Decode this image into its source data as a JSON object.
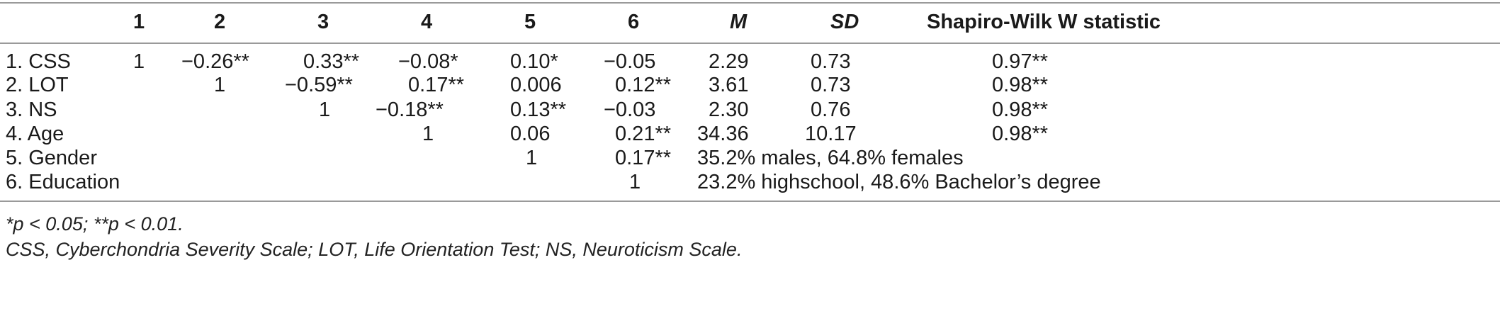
{
  "table": {
    "headers": {
      "c1": "1",
      "c2": "2",
      "c3": "3",
      "c4": "4",
      "c5": "5",
      "c6": "6",
      "m": "M",
      "sd": "SD",
      "sw": "Shapiro-Wilk W statistic"
    },
    "rows": [
      {
        "label": "1. CSS",
        "c1": "1",
        "c2": "−0.26**",
        "c3": "0.33**",
        "c4": "−0.08*",
        "c5": "0.10*",
        "c6": "−0.05",
        "m": "2.29",
        "sd": "0.73",
        "sw": "0.97**"
      },
      {
        "label": "2. LOT",
        "c2": "1",
        "c3": "−0.59**",
        "c4": "0.17**",
        "c5": "0.006",
        "c6": "0.12**",
        "m": "3.61",
        "sd": "0.73",
        "sw": "0.98**"
      },
      {
        "label": "3. NS",
        "c3": "1",
        "c4": "−0.18**",
        "c5": "0.13**",
        "c6": "−0.03",
        "m": "2.30",
        "sd": "0.76",
        "sw": "0.98**"
      },
      {
        "label": "4. Age",
        "c4": "1",
        "c5": "0.06",
        "c6": "0.21**",
        "m": "34.36",
        "sd": "10.17",
        "sw": "0.98**"
      },
      {
        "label": "5. Gender",
        "c5": "1",
        "c6": "0.17**",
        "span": "35.2% males, 64.8% females"
      },
      {
        "label": "6. Education",
        "c6": "1",
        "span": "23.2% highschool, 48.6% Bachelor’s degree"
      }
    ]
  },
  "footnotes": {
    "significance": "*p < 0.05; **p < 0.01.",
    "abbreviations": "CSS, Cyberchondria Severity Scale; LOT, Life Orientation Test; NS, Neuroticism Scale."
  }
}
